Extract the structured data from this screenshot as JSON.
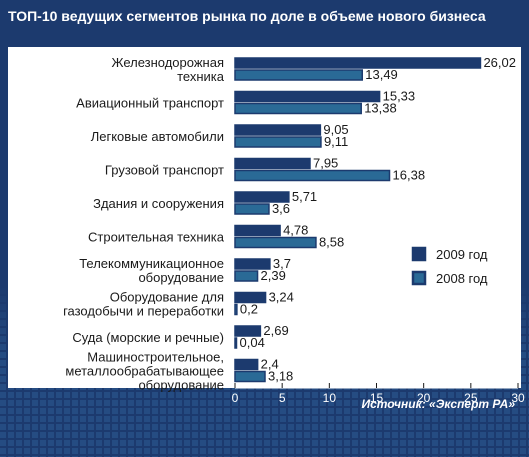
{
  "chart_data": {
    "type": "bar",
    "title": "ТОП-10 ведущих сегментов рынка по доле в объеме нового бизнеса",
    "source": "Источник: «Эксперт РА»",
    "categories": [
      [
        "Железнодорожная",
        "техника"
      ],
      [
        "Авиационный транспорт"
      ],
      [
        "Легковые автомобили"
      ],
      [
        "Грузовой транспорт"
      ],
      [
        "Здания и сооружения"
      ],
      [
        "Строительная техника"
      ],
      [
        "Телекоммуникационное",
        "оборудование"
      ],
      [
        "Оборудование для",
        "газодобычи и переработки"
      ],
      [
        "Суда (морские и речные)"
      ],
      [
        "Машиностроительное,",
        "металлообрабатывающее",
        "оборудование"
      ]
    ],
    "series": [
      {
        "name": "2009 год",
        "color": "#1c3a6e",
        "values": [
          26.02,
          15.33,
          9.05,
          7.95,
          5.71,
          4.78,
          3.7,
          3.24,
          2.69,
          2.4
        ]
      },
      {
        "name": "2008 год",
        "color": "#2a6a96",
        "values": [
          13.49,
          13.38,
          9.11,
          16.38,
          3.6,
          8.58,
          2.39,
          0.2,
          0.04,
          3.18
        ]
      }
    ],
    "value_labels": [
      [
        "26,02",
        "15,33",
        "9,05",
        "7,95",
        "5,71",
        "4,78",
        "3,7",
        "3,24",
        "2,69",
        "2,4"
      ],
      [
        "13,49",
        "13,38",
        "9,11",
        "16,38",
        "3,6",
        "8,58",
        "2,39",
        "0,2",
        "0,04",
        "3,18"
      ]
    ],
    "xlim": [
      0,
      30
    ],
    "xticks": [
      0,
      5,
      10,
      15,
      20,
      25,
      30
    ],
    "legend_position": "right",
    "grid": false,
    "colors": {
      "background": "#1c3a6e",
      "panel": "#ffffff",
      "bar_border": "#1c3a6e",
      "text_light": "#ffffff",
      "text_dark": "#1a1a1a"
    }
  }
}
